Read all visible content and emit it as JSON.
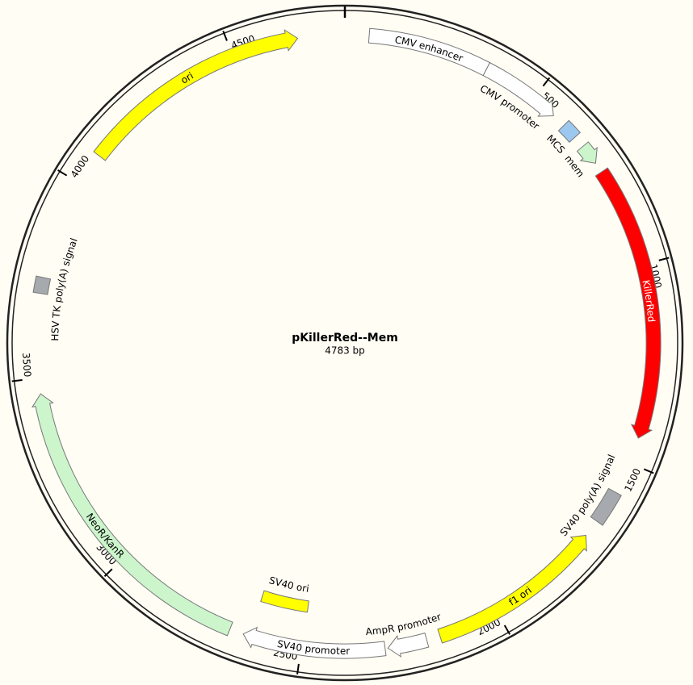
{
  "title": "pKillerRed--Mem",
  "length": {
    "value": 4783,
    "label": "4783 bp"
  },
  "ticks": [
    500,
    1000,
    1500,
    2000,
    2500,
    3000,
    3500,
    4000,
    4500
  ],
  "features": [
    {
      "label": "CMV enhancer",
      "start": 60,
      "end": 363,
      "strand": 0,
      "shape": "box",
      "color": "#ffffff"
    },
    {
      "label": "CMV promoter",
      "start": 363,
      "end": 565,
      "strand": 1,
      "shape": "arrow",
      "color": "#ffffff"
    },
    {
      "label": "MCS",
      "start": 600,
      "end": 640,
      "strand": 0,
      "shape": "box",
      "color": "#9cc8f0"
    },
    {
      "label": "mem",
      "start": 670,
      "end": 722,
      "strand": 1,
      "shape": "arrow",
      "color": "#ccf5cc"
    },
    {
      "label": "KillerRed",
      "start": 748,
      "end": 1435,
      "strand": 1,
      "shape": "arrow",
      "color": "#ff0000"
    },
    {
      "label": "SV40 poly(A) signal",
      "start": 1580,
      "end": 1665,
      "strand": 0,
      "shape": "box",
      "color": "#a6a9ad"
    },
    {
      "label": "f1 ori",
      "start": 1709,
      "end": 2153,
      "strand": -1,
      "shape": "arrow",
      "color": "#ffff00"
    },
    {
      "label": "AmpR promoter",
      "start": 2187,
      "end": 2285,
      "strand": 1,
      "shape": "arrow",
      "color": "#ffffff"
    },
    {
      "label": "SV40 promoter",
      "start": 2292,
      "end": 2647,
      "strand": 1,
      "shape": "arrow",
      "color": "#ffffff"
    },
    {
      "label": "SV40 ori",
      "start": 2497,
      "end": 2631,
      "strand": 0,
      "shape": "box",
      "color": "#ffff00"
    },
    {
      "label": "NeoR/KanR",
      "start": 2682,
      "end": 3461,
      "strand": 1,
      "shape": "arrow",
      "color": "#ccf5cc"
    },
    {
      "label": "HSV TK poly(A) signal",
      "start": 3710,
      "end": 3750,
      "strand": 0,
      "shape": "box",
      "color": "#a6a9ad"
    },
    {
      "label": "ori",
      "start": 4083,
      "end": 4666,
      "strand": 1,
      "shape": "arrow",
      "color": "#ffff00"
    }
  ]
}
